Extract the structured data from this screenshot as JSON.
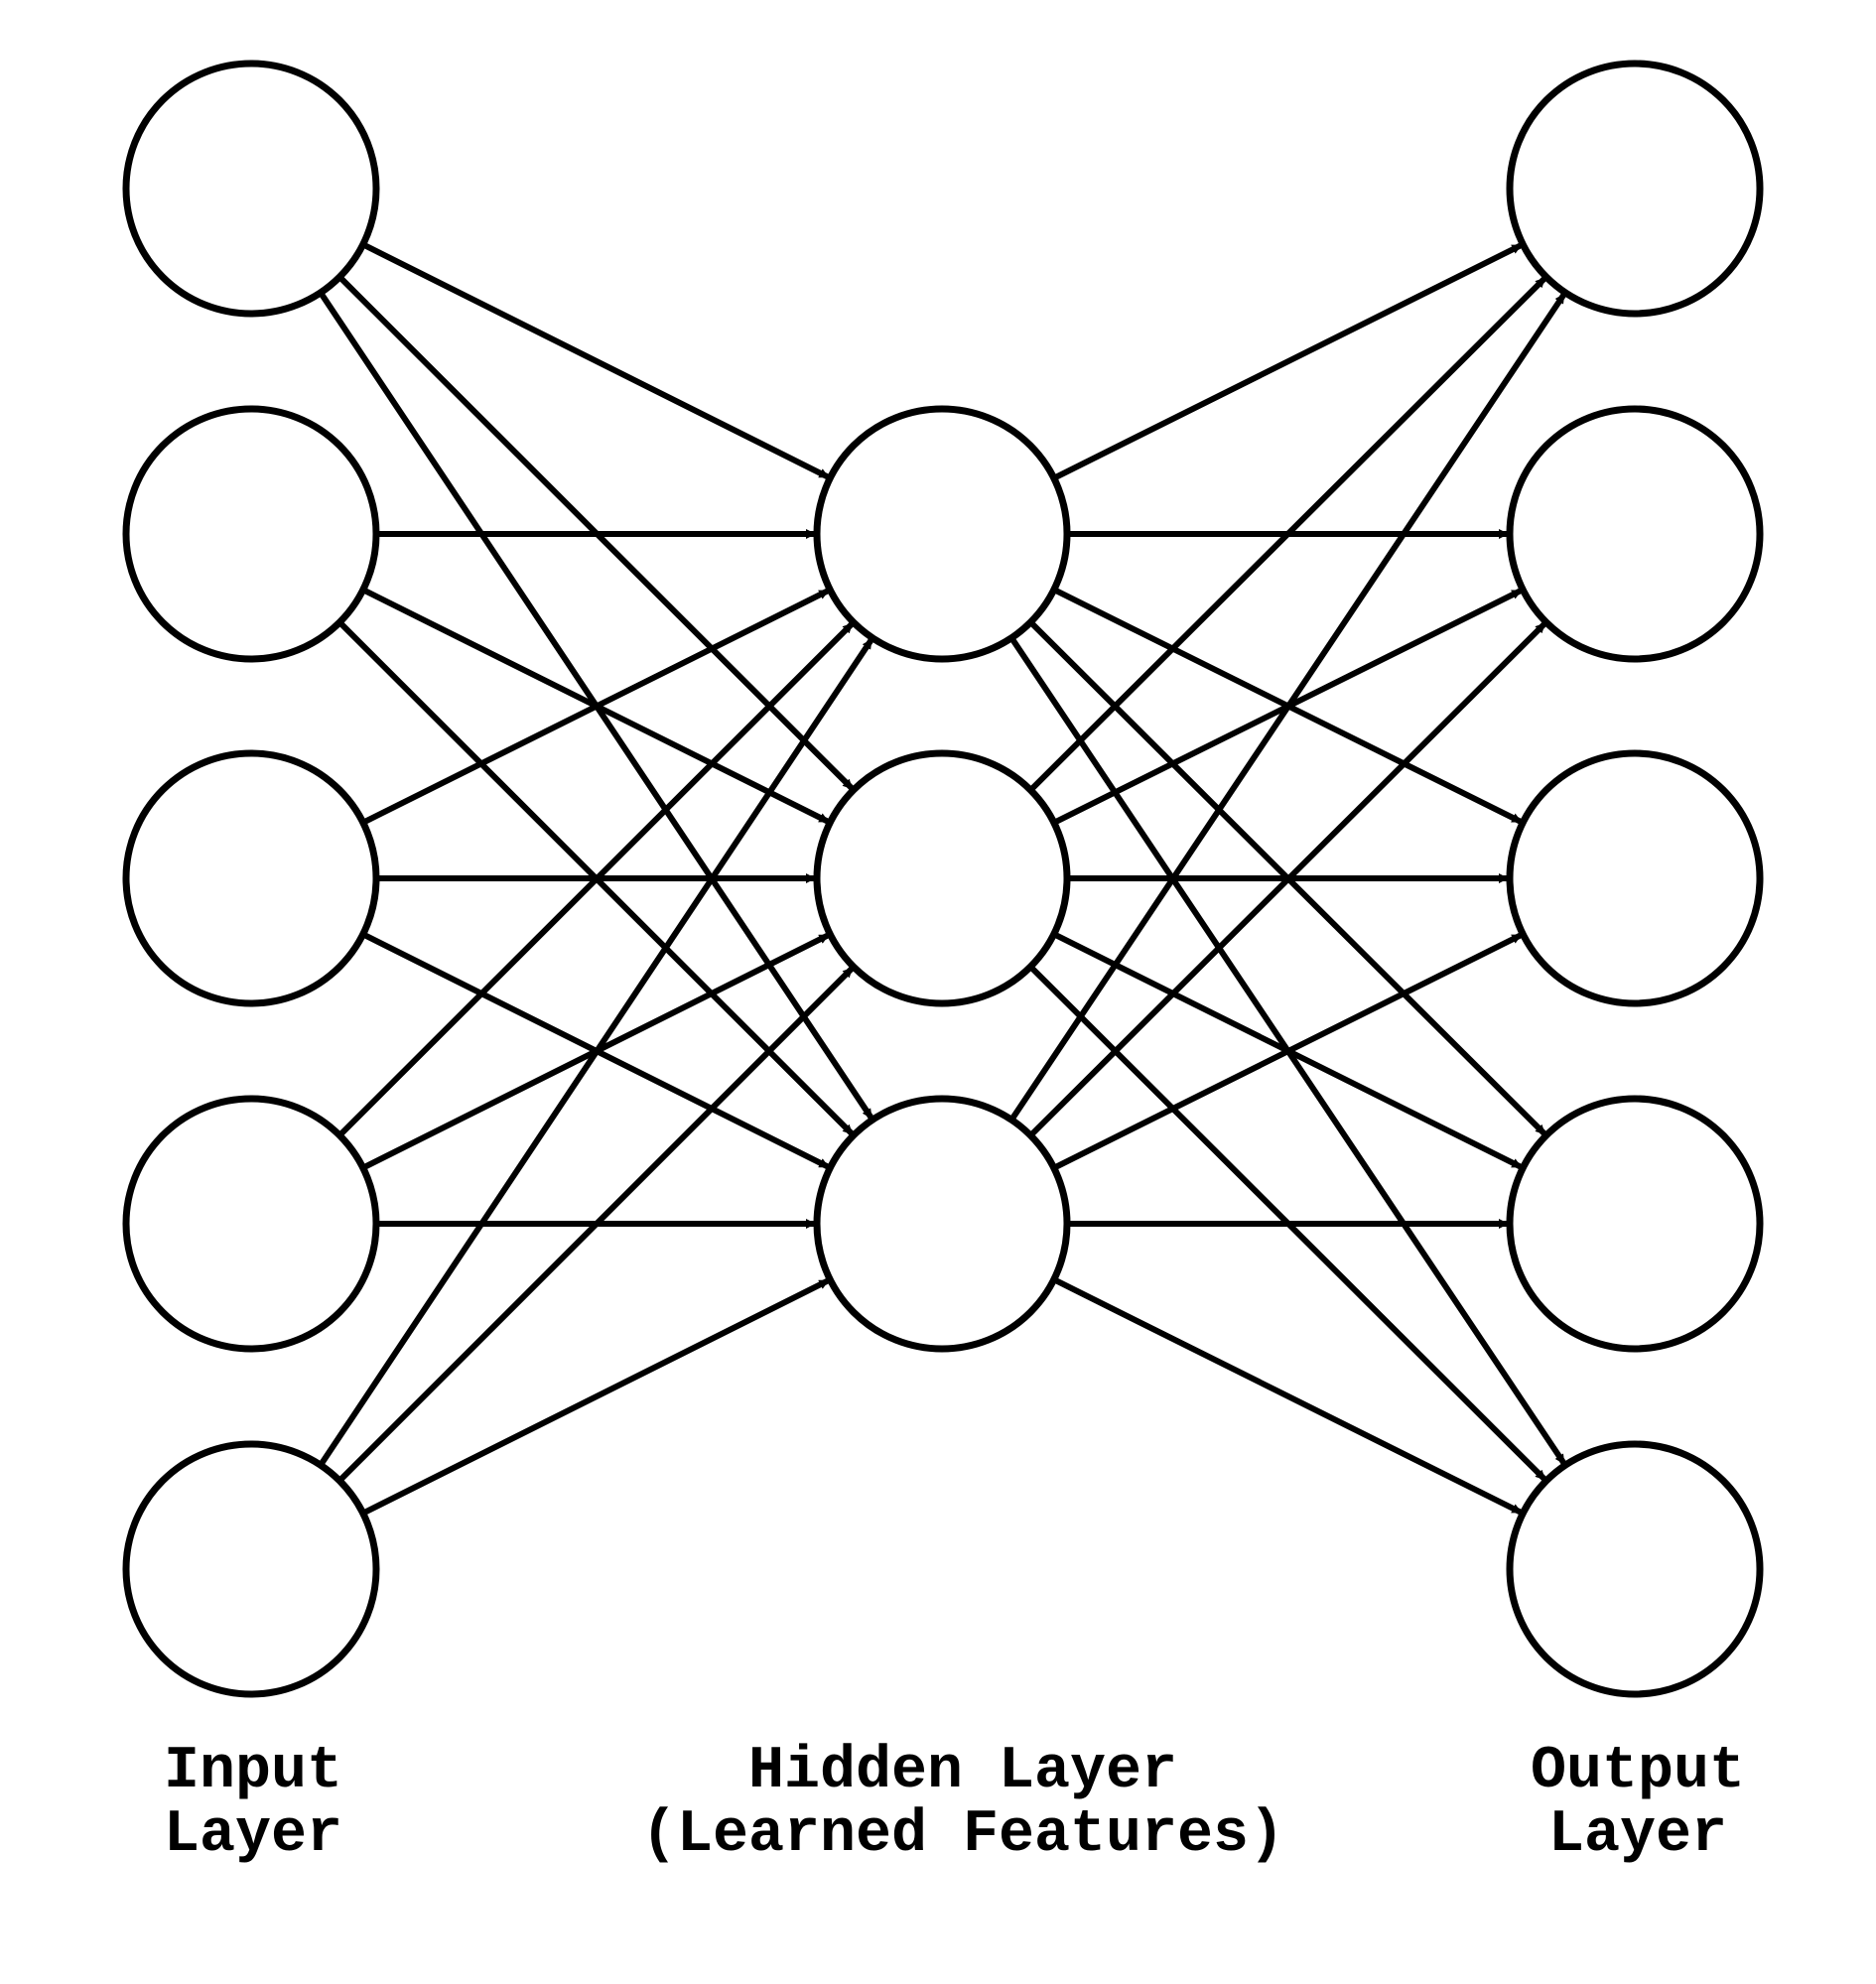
{
  "diagram": {
    "layers": [
      {
        "id": "input",
        "label_lines": [
          "Input",
          "Layer"
        ],
        "node_count": 5
      },
      {
        "id": "hidden",
        "label_lines": [
          "Hidden Layer",
          "(Learned Features)"
        ],
        "node_count": 3
      },
      {
        "id": "output",
        "label_lines": [
          "Output",
          "Layer"
        ],
        "node_count": 5
      }
    ],
    "connections": "fully-connected with arrowheads from each layer to the next",
    "colors": {
      "stroke": "#000000",
      "fill": "#ffffff"
    }
  }
}
